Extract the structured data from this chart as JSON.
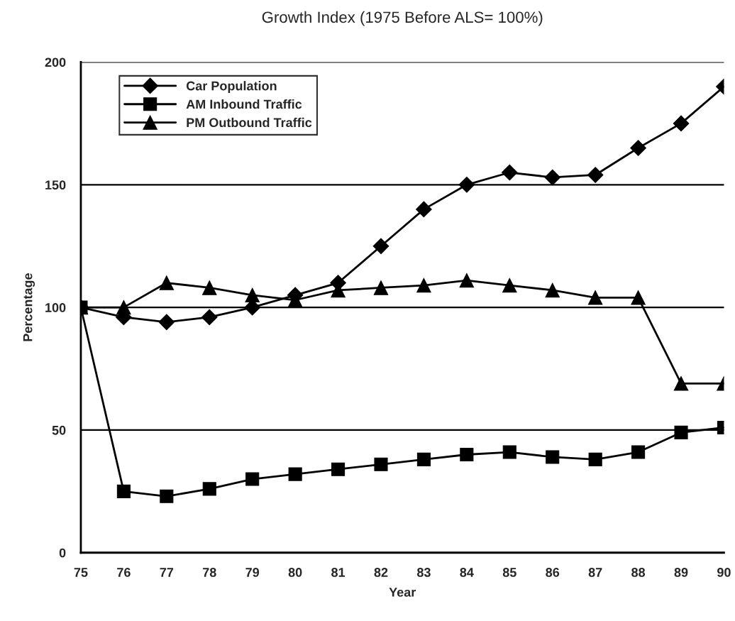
{
  "chart_data": {
    "type": "line",
    "title": "Growth Index (1975 Before ALS= 100%)",
    "xlabel": "Year",
    "ylabel": "Percentage",
    "categories": [
      "75",
      "76",
      "77",
      "78",
      "79",
      "80",
      "81",
      "82",
      "83",
      "84",
      "85",
      "86",
      "87",
      "88",
      "89",
      "90"
    ],
    "ylim": [
      0,
      200
    ],
    "yticks": [
      0,
      50,
      100,
      150,
      200
    ],
    "grid": "y",
    "legend": "top left",
    "line_style": "solid",
    "series": [
      {
        "name": "Car Population",
        "color": "#000000",
        "marker": "diamond",
        "values": [
          100,
          96,
          94,
          96,
          100,
          105,
          110,
          125,
          140,
          150,
          155,
          153,
          154,
          165,
          175,
          190
        ]
      },
      {
        "name": "AM Inbound Traffic",
        "color": "#000000",
        "marker": "square",
        "values": [
          100,
          25,
          23,
          26,
          30,
          32,
          34,
          36,
          38,
          40,
          41,
          39,
          38,
          41,
          49,
          51
        ]
      },
      {
        "name": "PM Outbound Traffic",
        "color": "#000000",
        "marker": "triangle",
        "values": [
          100,
          100,
          110,
          108,
          105,
          103,
          107,
          108,
          109,
          111,
          109,
          107,
          104,
          104,
          69,
          69
        ]
      }
    ]
  }
}
